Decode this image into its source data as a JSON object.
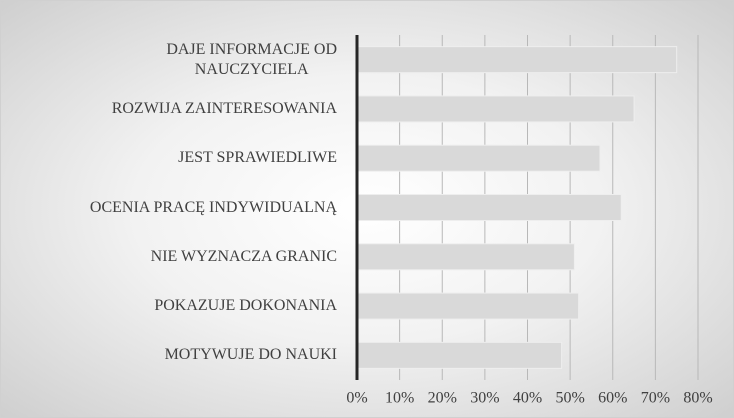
{
  "chart_data": {
    "type": "bar",
    "orientation": "horizontal",
    "categories": [
      "DAJE INFORMACJE OD\nNAUCZYCIELA",
      "ROZWIJA ZAINTERESOWANIA",
      "JEST SPRAWIEDLIWE",
      "OCENIA PRACĘ INDYWIDUALNĄ",
      "NIE WYZNACZA GRANIC",
      "POKAZUJE DOKONANIA",
      "MOTYWUJE DO NAUKI"
    ],
    "values": [
      75,
      65,
      57,
      62,
      51,
      52,
      48
    ],
    "color": "#d9d9d9",
    "xlim": [
      0,
      80
    ],
    "xticks": [
      {
        "value": 0,
        "label": "0%"
      },
      {
        "value": 10,
        "label": "10%"
      },
      {
        "value": 20,
        "label": "20%"
      },
      {
        "value": 30,
        "label": "30%"
      },
      {
        "value": 40,
        "label": "40%"
      },
      {
        "value": 50,
        "label": "50%"
      },
      {
        "value": 60,
        "label": "60%"
      },
      {
        "value": 70,
        "label": "70%"
      },
      {
        "value": 80,
        "label": "80%"
      }
    ],
    "grid": true
  }
}
